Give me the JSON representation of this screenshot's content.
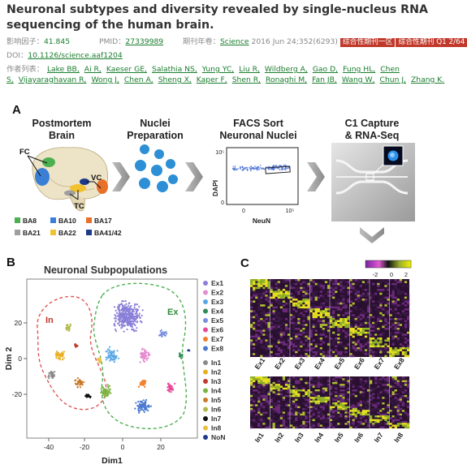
{
  "title": "Neuronal subtypes and diversity revealed by single-nucleus RNA sequencing of the human brain.",
  "impact_label": "影响因子：",
  "impact_value": "41.845",
  "pmid_label": "PMID：",
  "pmid_value": "27339989",
  "journal_label": "期刊年卷：",
  "journal_name": "Science",
  "journal_detail": "2016 Jun 24;352(6293)",
  "badges": [
    "综合性期刊一区",
    "综合性期刊 Q1 2/64"
  ],
  "doi_label": "DOI：",
  "doi_value": "10.1126/science.aaf1204",
  "authors_label": "作者列表：",
  "authors": [
    "Lake BB,",
    "Ai R,",
    "Kaeser GE,",
    "Salathia NS,",
    "Yung YC,",
    "Liu R,",
    "Wildberg A,",
    "Gao D,",
    "Fung HL,",
    "Chen S,",
    "Vijayaraghavan R,",
    "Wong J,",
    "Chen A,",
    "Sheng X,",
    "Kaper F,",
    "Shen R,",
    "Ronaghi M,",
    "Fan JB,",
    "Wang W,",
    "Chun J,",
    "Zhang K."
  ],
  "panel_a": {
    "letter": "A",
    "step1": [
      "Postmortem",
      "Brain"
    ],
    "step2": [
      "Nuclei",
      "Preparation"
    ],
    "step3": [
      "FACS Sort",
      "Neuronal Nuclei"
    ],
    "step4": [
      "C1 Capture",
      "& RNA-Seq"
    ],
    "brain_labels": [
      "FC",
      "VC",
      "TC"
    ],
    "legend": [
      {
        "label": "BA8",
        "color": "#4caf50"
      },
      {
        "label": "BA10",
        "color": "#3a7fd5"
      },
      {
        "label": "BA17",
        "color": "#e8702a"
      },
      {
        "label": "BA21",
        "color": "#9e9e9e"
      },
      {
        "label": "BA22",
        "color": "#f2c12e"
      },
      {
        "label": "BA41/42",
        "color": "#1e3a8a"
      }
    ],
    "facs_ylabel": "DAPI",
    "facs_xlabel": "NeuN",
    "facs_ytick": "10⁵",
    "facs_yzero": "0",
    "facs_xzero": "0",
    "facs_xtick": "10⁵"
  },
  "panel_b": {
    "letter": "B",
    "title": "Neuronal Subpopulations",
    "xlabel": "Dim1",
    "ylabel": "Dim 2",
    "group_in": "In",
    "group_ex": "Ex",
    "xticks": [
      "-40",
      "-20",
      "0",
      "20"
    ],
    "yticks": [
      "20",
      "0",
      "-20"
    ],
    "legend": [
      {
        "label": "Ex1",
        "color": "#8a7fd8"
      },
      {
        "label": "Ex2",
        "color": "#e58bd0"
      },
      {
        "label": "Ex3",
        "color": "#5aa7e6"
      },
      {
        "label": "Ex4",
        "color": "#2e8b57"
      },
      {
        "label": "Ex5",
        "color": "#7a8fe0"
      },
      {
        "label": "Ex6",
        "color": "#e84a9a"
      },
      {
        "label": "Ex7",
        "color": "#f07f2a"
      },
      {
        "label": "Ex8",
        "color": "#4a78d0"
      },
      {
        "label": "In1",
        "color": "#8a8a8a"
      },
      {
        "label": "In2",
        "color": "#e8b020"
      },
      {
        "label": "In3",
        "color": "#c0392b"
      },
      {
        "label": "In4",
        "color": "#7cb342"
      },
      {
        "label": "In5",
        "color": "#c97a2a"
      },
      {
        "label": "In6",
        "color": "#b0b848"
      },
      {
        "label": "In7",
        "color": "#111111"
      },
      {
        "label": "In8",
        "color": "#e8c040"
      },
      {
        "label": "NoN",
        "color": "#1e3a8a"
      }
    ]
  },
  "panel_c": {
    "letter": "C",
    "colorbar_ticks": [
      "-2",
      "0",
      "2"
    ],
    "ex_labels": [
      "Ex1",
      "Ex2",
      "Ex3",
      "Ex4",
      "Ex5",
      "Ex6",
      "Ex7",
      "Ex8"
    ],
    "in_labels": [
      "In1",
      "In2",
      "In3",
      "In4",
      "In5",
      "In6",
      "In7",
      "In8"
    ]
  },
  "colors": {
    "accent_green": "#1a7d2e",
    "badge_red": "#c0392b",
    "dashed_red": "#e05555",
    "dashed_green": "#4caf50"
  }
}
